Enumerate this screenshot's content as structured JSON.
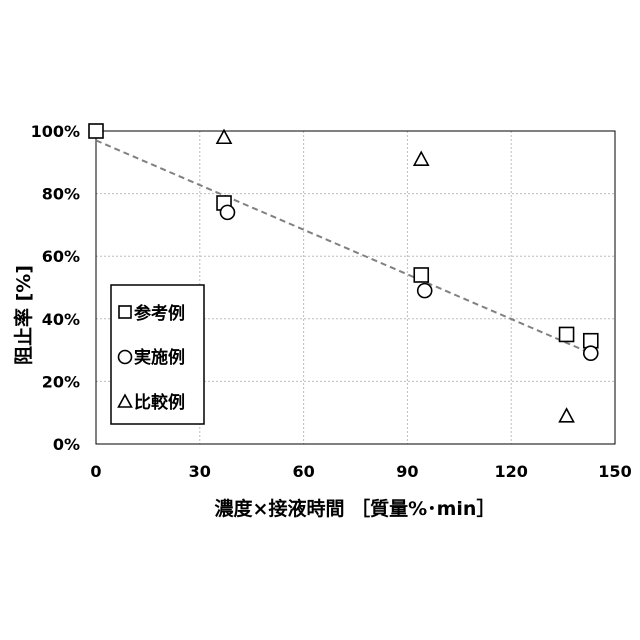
{
  "chart_data": {
    "type": "scatter",
    "title": "",
    "xlabel": "濃度×接液時間 ［質量%･min］",
    "ylabel": "阻止率 [%]",
    "xlim": [
      0,
      150
    ],
    "ylim": [
      0,
      100
    ],
    "x_ticks": [
      0,
      30,
      60,
      90,
      120,
      150
    ],
    "y_ticks": [
      0,
      20,
      40,
      60,
      80,
      100
    ],
    "y_tick_labels": [
      "0%",
      "20%",
      "40%",
      "60%",
      "80%",
      "100%"
    ],
    "grid": "dotted",
    "legend_position": "lower-left",
    "series": [
      {
        "name": "参考例",
        "marker": "square",
        "points": [
          [
            0,
            100
          ],
          [
            37,
            77
          ],
          [
            94,
            54
          ],
          [
            136,
            35
          ],
          [
            143,
            33
          ]
        ]
      },
      {
        "name": "実施例",
        "marker": "circle",
        "points": [
          [
            38,
            74
          ],
          [
            95,
            49
          ],
          [
            143,
            29
          ]
        ]
      },
      {
        "name": "比較例",
        "marker": "triangle",
        "points": [
          [
            37,
            98
          ],
          [
            94,
            91
          ],
          [
            136,
            9
          ]
        ]
      }
    ],
    "trendline": {
      "style": "dashed",
      "points": [
        [
          0,
          97
        ],
        [
          143,
          29
        ]
      ]
    }
  }
}
